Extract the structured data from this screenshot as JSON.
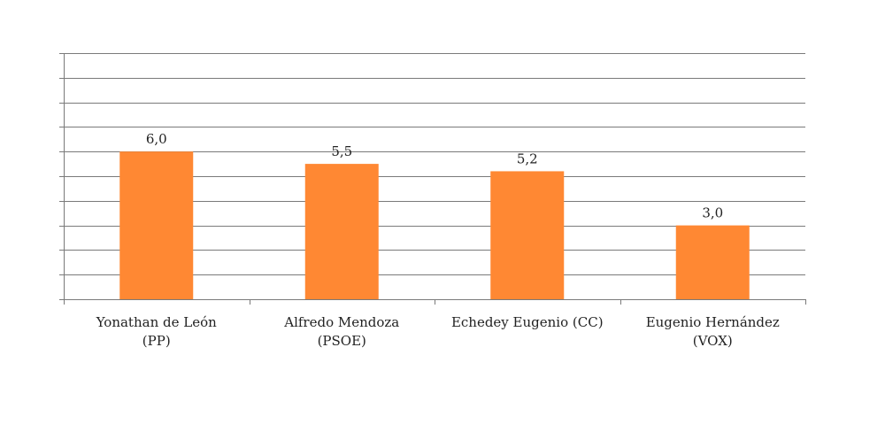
{
  "chart_data": {
    "type": "bar",
    "categories": [
      [
        "Yonathan de León",
        "(PP)"
      ],
      [
        "Alfredo Mendoza",
        "(PSOE)"
      ],
      [
        "Echedey Eugenio (CC)"
      ],
      [
        "Eugenio Hernández",
        "(VOX)"
      ]
    ],
    "values": [
      6.0,
      5.5,
      5.2,
      3.0
    ],
    "data_labels": [
      "6,0",
      "5,5",
      "5,2",
      "3,0"
    ],
    "ylim": [
      0,
      10
    ],
    "y_gridlines": 10,
    "grid": true,
    "bar_color": "#FF8833",
    "title": "",
    "xlabel": "",
    "ylabel": ""
  }
}
